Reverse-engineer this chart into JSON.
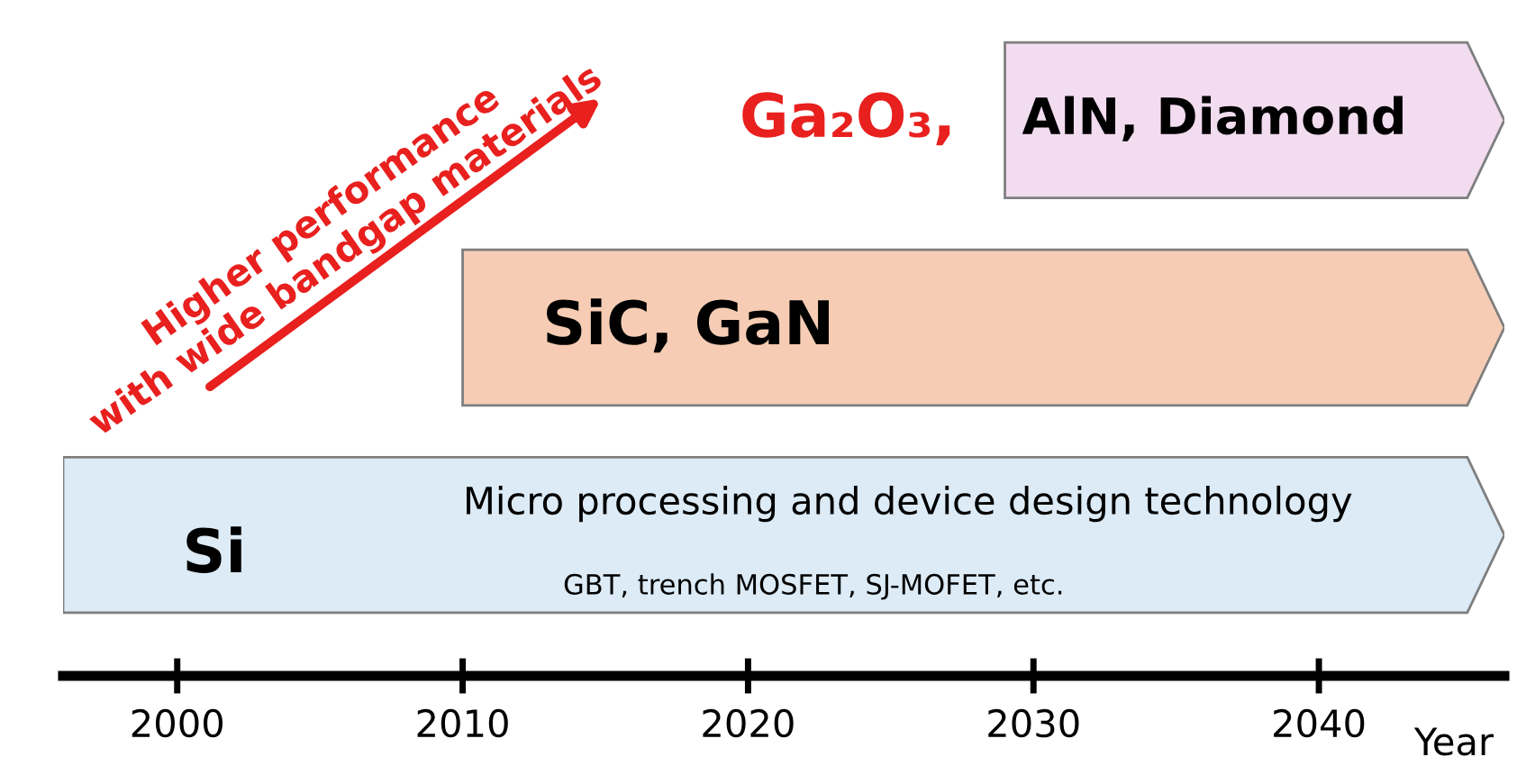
{
  "chart_data": {
    "type": "bar",
    "orientation": "horizontal",
    "categories": [
      null,
      null,
      null
    ],
    "base": [
      2029,
      2010,
      1996
    ],
    "values": [
      17.5,
      36.5,
      50.5
    ],
    "colors": [
      "#f2dcf0",
      "#f6cdb4",
      "#dcebf6"
    ],
    "xlim": [
      1996,
      2046.5
    ],
    "xticks": [
      2000,
      2010,
      2020,
      2030,
      2040
    ],
    "xlabel": "Year",
    "tick_labels": "x",
    "grid": false,
    "annotations": [
      "Ga₂O₃,",
      "AlN, Diamond",
      "SiC, GaN",
      "Si",
      "Micro processing and device design technology",
      "GBT, trench MOSFET, SJ-MOFET, etc.",
      "Higher performance\nwith wide bandgap materials"
    ]
  }
}
